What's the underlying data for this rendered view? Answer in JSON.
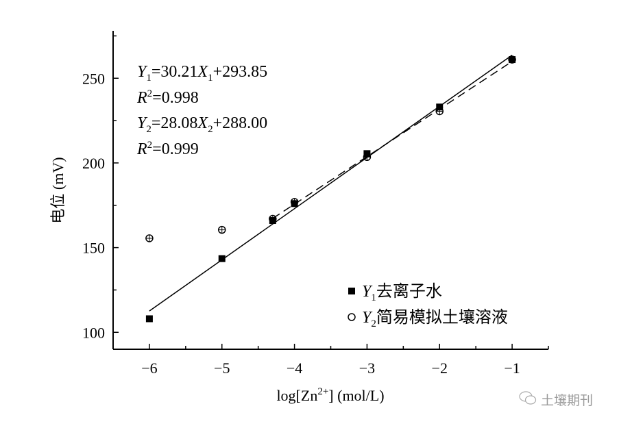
{
  "chart_data": {
    "type": "scatter",
    "xlabel": "log[Zn2+] (mol/L)",
    "xlabel_parts": {
      "pre": "log[Zn",
      "sup": "2+",
      "post": "] (mol/L)"
    },
    "ylabel": "电位 (mV)",
    "xlim": [
      -6.5,
      -0.5
    ],
    "ylim": [
      90,
      278
    ],
    "x_ticks": [
      -6,
      -5,
      -4,
      -3,
      -2,
      -1
    ],
    "x_tick_labels": [
      "−6",
      "−5",
      "−4",
      "−3",
      "−2",
      "−1"
    ],
    "y_ticks": [
      100,
      150,
      200,
      250
    ],
    "y_tick_labels": [
      "100",
      "150",
      "200",
      "250"
    ],
    "grid": false,
    "legend_placement": "bottom-right",
    "series": [
      {
        "name": "Y1去离子水",
        "name_parts": {
          "var": "Y",
          "sub": "1",
          "text": "去离子水"
        },
        "marker": "filled-square",
        "line": "solid",
        "x": [
          -6,
          -5,
          -4.3,
          -4,
          -3,
          -2,
          -1
        ],
        "y": [
          108,
          143.5,
          166,
          176,
          205.5,
          233,
          261
        ],
        "fit": {
          "slope": 30.21,
          "intercept": 293.85,
          "x_range": [
            -6,
            -1
          ]
        }
      },
      {
        "name": "Y2简易模拟土壤溶液",
        "name_parts": {
          "var": "Y",
          "sub": "2",
          "text": "简易模拟土壤溶液"
        },
        "marker": "open-circle",
        "line": "dashed",
        "x": [
          -6,
          -5,
          -4.3,
          -4,
          -3,
          -2,
          -1
        ],
        "y": [
          155.5,
          160.5,
          167,
          177,
          203.5,
          230.5,
          261
        ],
        "fit": {
          "slope": 28.08,
          "intercept": 288.0,
          "x_range": [
            -4.3,
            -1
          ]
        }
      }
    ],
    "annotations": {
      "eq1": {
        "y": "Y",
        "ysub": "1",
        "mid": "=30.21",
        "x": "X",
        "xsub": "1",
        "end": "+293.85"
      },
      "r1": {
        "r": "R",
        "sup": "2",
        "end": "=0.998"
      },
      "eq2": {
        "y": "Y",
        "ysub": "2",
        "mid": "=28.08",
        "x": "X",
        "xsub": "2",
        "end": "+288.00"
      },
      "r2": {
        "r": "R",
        "sup": "2",
        "end": "=0.999"
      }
    }
  },
  "watermark": {
    "text": "土壤期刊",
    "icon": "wechat-icon"
  }
}
